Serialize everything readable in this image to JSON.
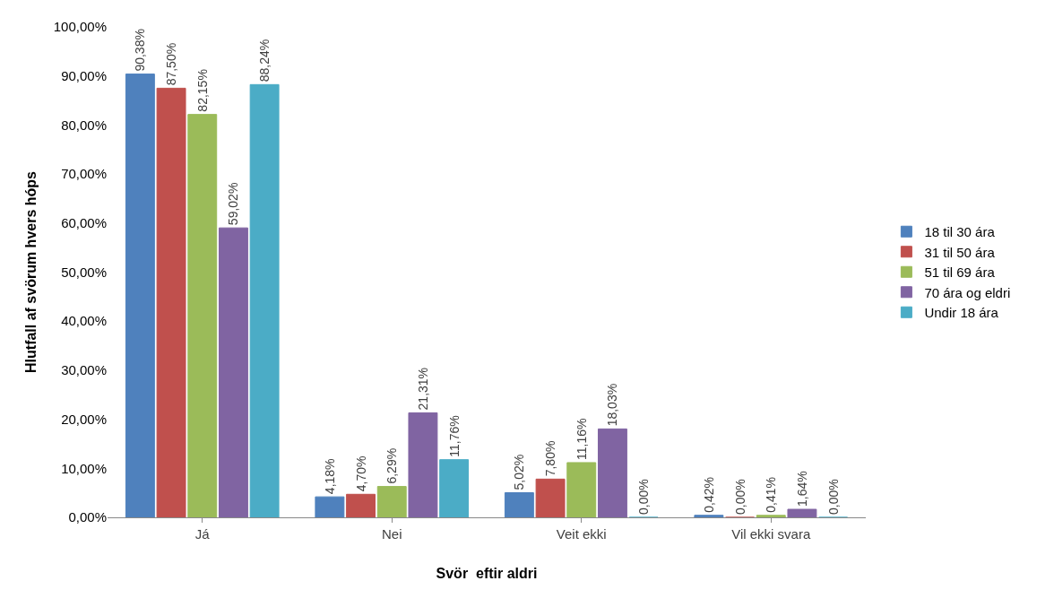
{
  "chart_data": {
    "type": "bar",
    "xlabel": "Svör  eftir aldri",
    "ylabel": "Hlutfall af svörum hvers hóps",
    "categories": [
      "Já",
      "Nei",
      "Veit ekki",
      "Vil ekki svara"
    ],
    "series": [
      {
        "name": "18 til 30 ára",
        "color": "#4f81bd",
        "values": [
          90.38,
          4.18,
          5.02,
          0.42
        ],
        "value_labels": [
          "90,38%",
          "4,18%",
          "5,02%",
          "0,42%"
        ]
      },
      {
        "name": "31 til 50 ára",
        "color": "#c0504d",
        "values": [
          87.5,
          4.7,
          7.8,
          0.0
        ],
        "value_labels": [
          "87,50%",
          "4,70%",
          "7,80%",
          "0,00%"
        ]
      },
      {
        "name": "51 til 69 ára",
        "color": "#9bbb59",
        "values": [
          82.15,
          6.29,
          11.16,
          0.41
        ],
        "value_labels": [
          "82,15%",
          "6,29%",
          "11,16%",
          "0,41%"
        ]
      },
      {
        "name": "70 ára og eldri",
        "color": "#8064a2",
        "values": [
          59.02,
          21.31,
          18.03,
          1.64
        ],
        "value_labels": [
          "59,02%",
          "21,31%",
          "18,03%",
          "1,64%"
        ]
      },
      {
        "name": "Undir 18 ára",
        "color": "#4bacc6",
        "values": [
          88.24,
          11.76,
          0.0,
          0.0
        ],
        "value_labels": [
          "88,24%",
          "11,76%",
          "0,00%",
          "0,00%"
        ]
      }
    ],
    "ylim": [
      0,
      100
    ],
    "yticks": [
      {
        "value": 0,
        "label": "0,00%"
      },
      {
        "value": 10,
        "label": "10,00%"
      },
      {
        "value": 20,
        "label": "20,00%"
      },
      {
        "value": 30,
        "label": "30,00%"
      },
      {
        "value": 40,
        "label": "40,00%"
      },
      {
        "value": 50,
        "label": "50,00%"
      },
      {
        "value": 60,
        "label": "60,00%"
      },
      {
        "value": 70,
        "label": "70,00%"
      },
      {
        "value": 80,
        "label": "80,00%"
      },
      {
        "value": 90,
        "label": "90,00%"
      },
      {
        "value": 100,
        "label": "100,00%"
      }
    ],
    "legend": "right"
  }
}
